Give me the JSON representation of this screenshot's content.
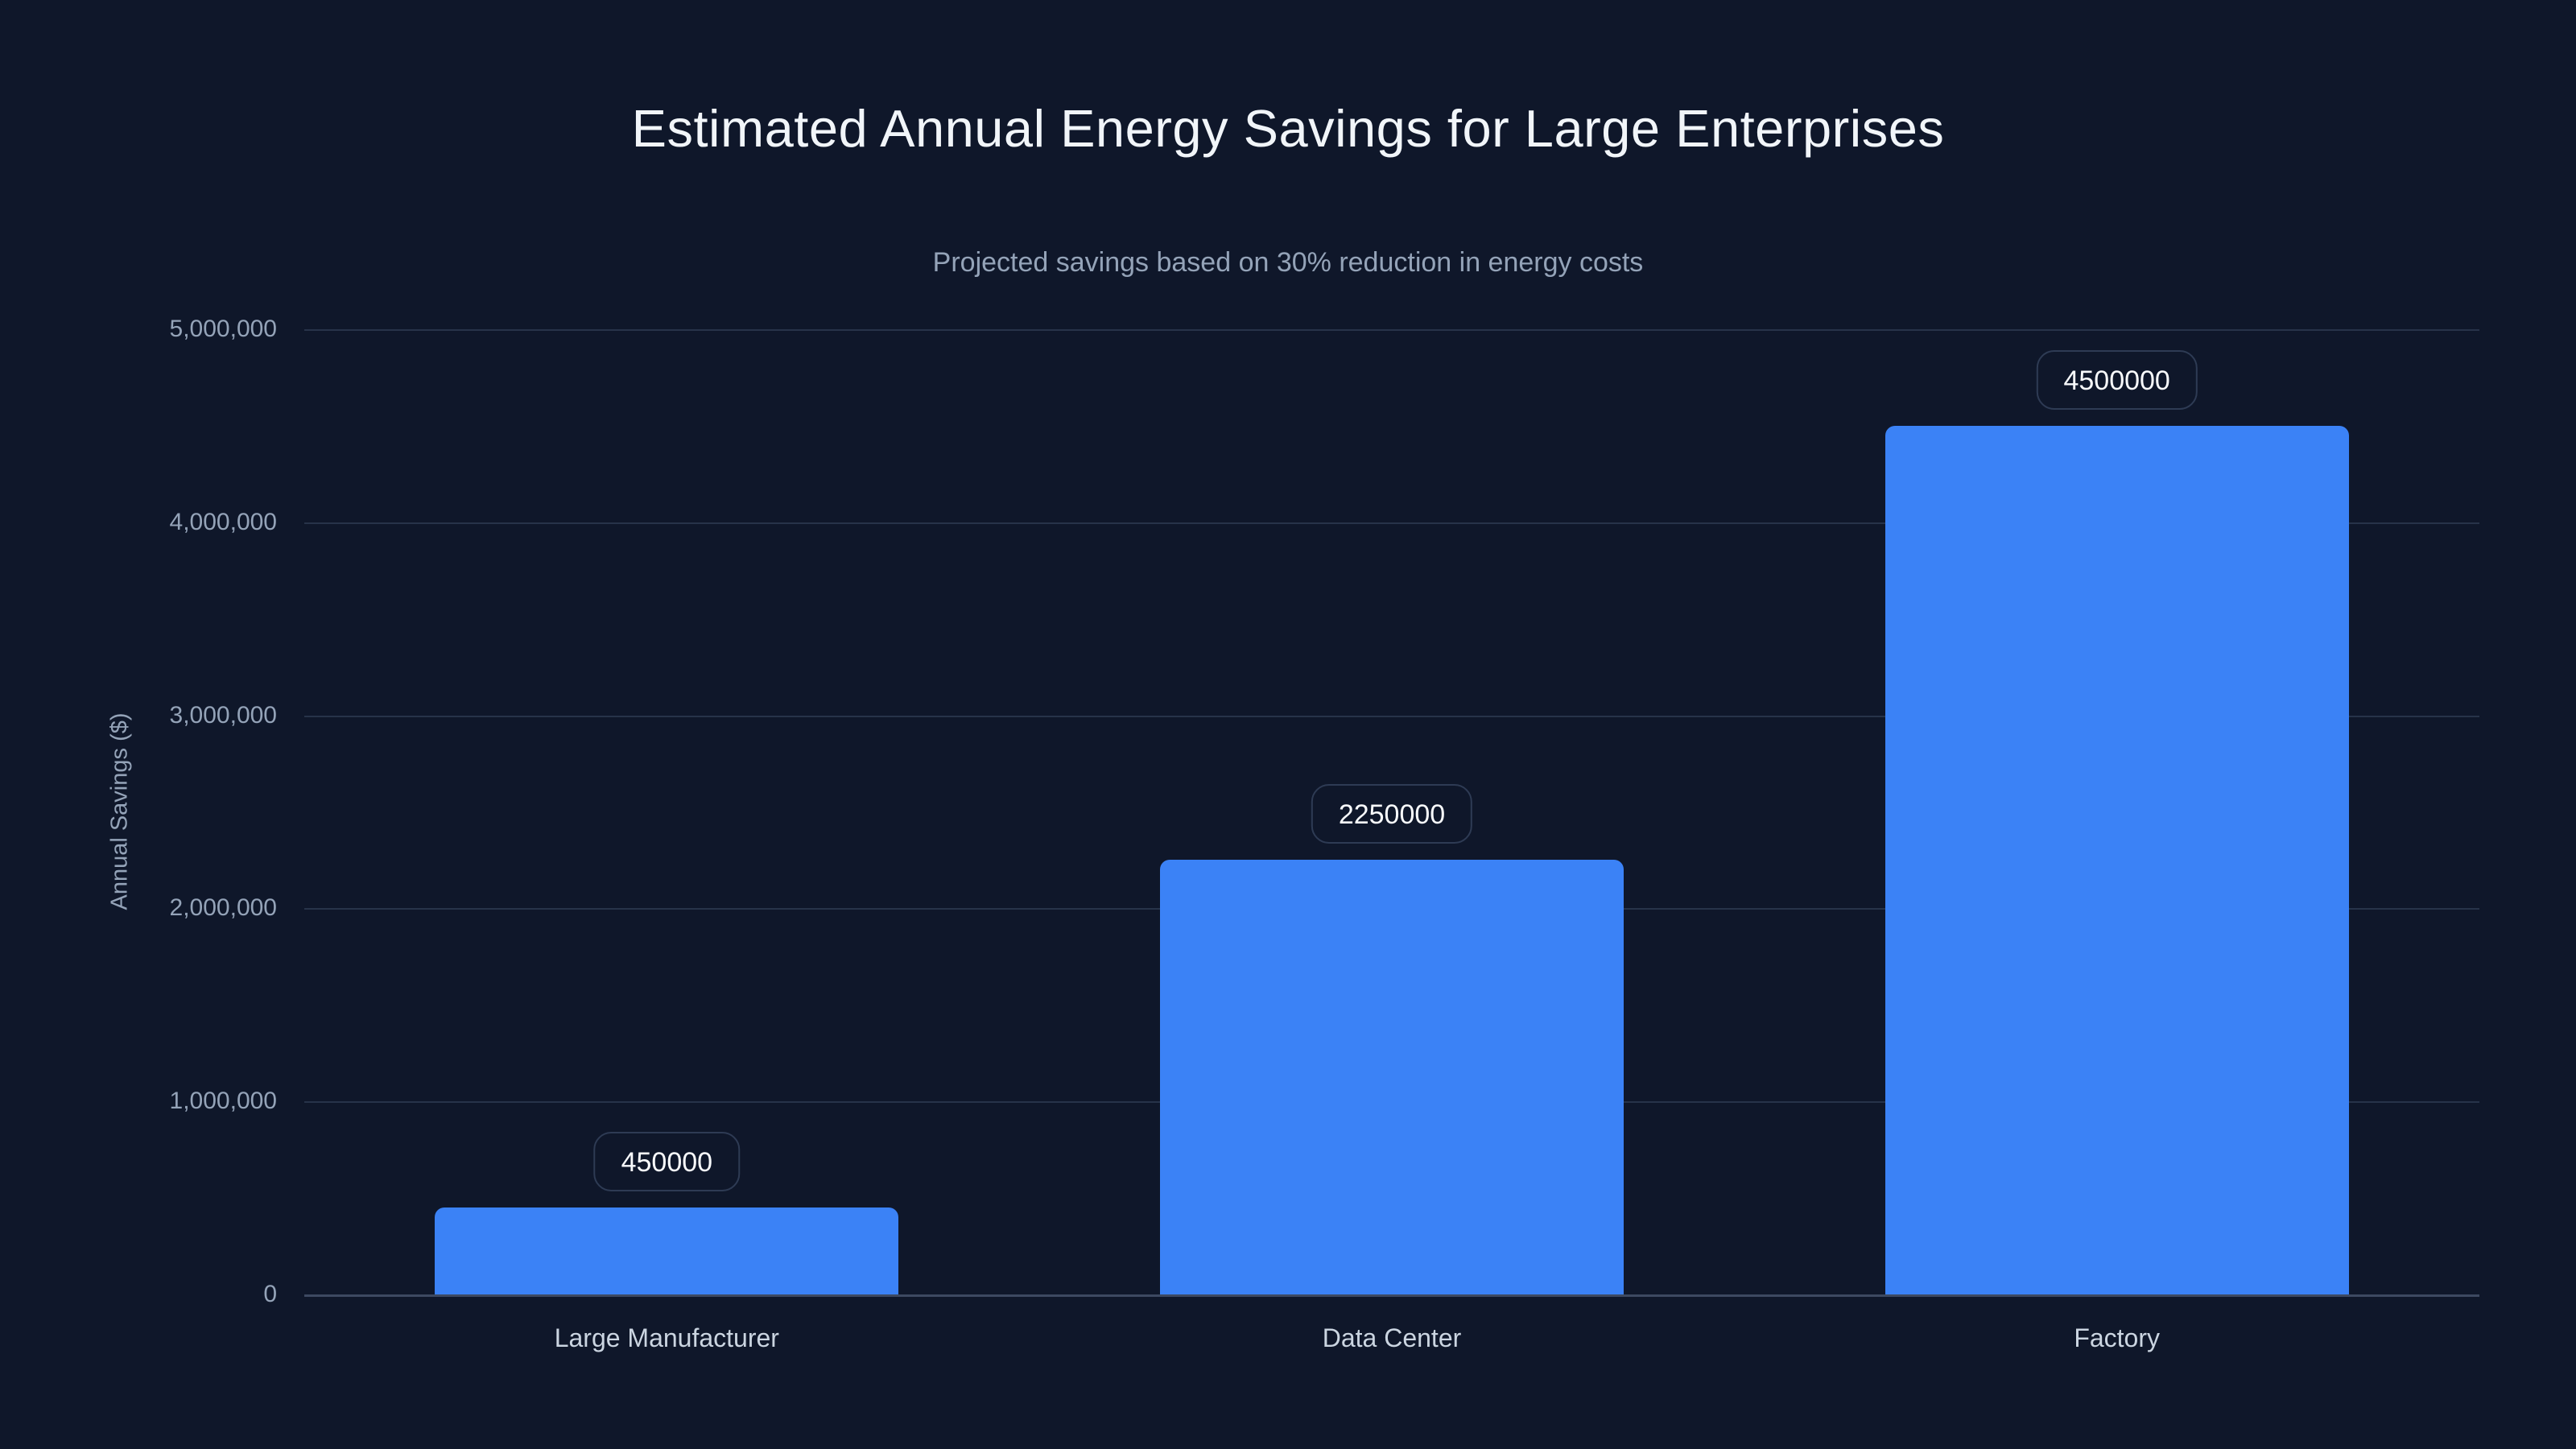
{
  "page": {
    "title": "Estimated Annual Energy Savings for Large Enterprises",
    "subtitle": "Projected savings based on 30% reduction in energy costs"
  },
  "colors": {
    "background": "#0f172a",
    "bar": "#3b82f6",
    "grid": "#273349",
    "axis_line": "#3d4961",
    "title_text": "#f1f5f9",
    "subtitle_text": "#94a3b8",
    "tick_text": "#94a3b8",
    "category_text": "#cbd5e1",
    "pill_border": "#2e3b54",
    "pill_text": "#f8fafc"
  },
  "chart_data": {
    "type": "bar",
    "title": "Estimated Annual Energy Savings for Large Enterprises",
    "subtitle": "Projected savings based on 30% reduction in energy costs",
    "categories": [
      "Large Manufacturer",
      "Data Center",
      "Factory"
    ],
    "values": [
      450000,
      2250000,
      4500000
    ],
    "bar_labels": [
      "450000",
      "2250000",
      "4500000"
    ],
    "xlabel": "",
    "ylabel": "Annual Savings ($)",
    "ylim": [
      0,
      5000000
    ],
    "yticks": [
      0,
      1000000,
      2000000,
      3000000,
      4000000,
      5000000
    ],
    "ytick_labels": [
      "0",
      "1,000,000",
      "2,000,000",
      "3,000,000",
      "4,000,000",
      "5,000,000"
    ],
    "grid": "horizontal",
    "legend": "none",
    "bar_color": "#3b82f6"
  }
}
